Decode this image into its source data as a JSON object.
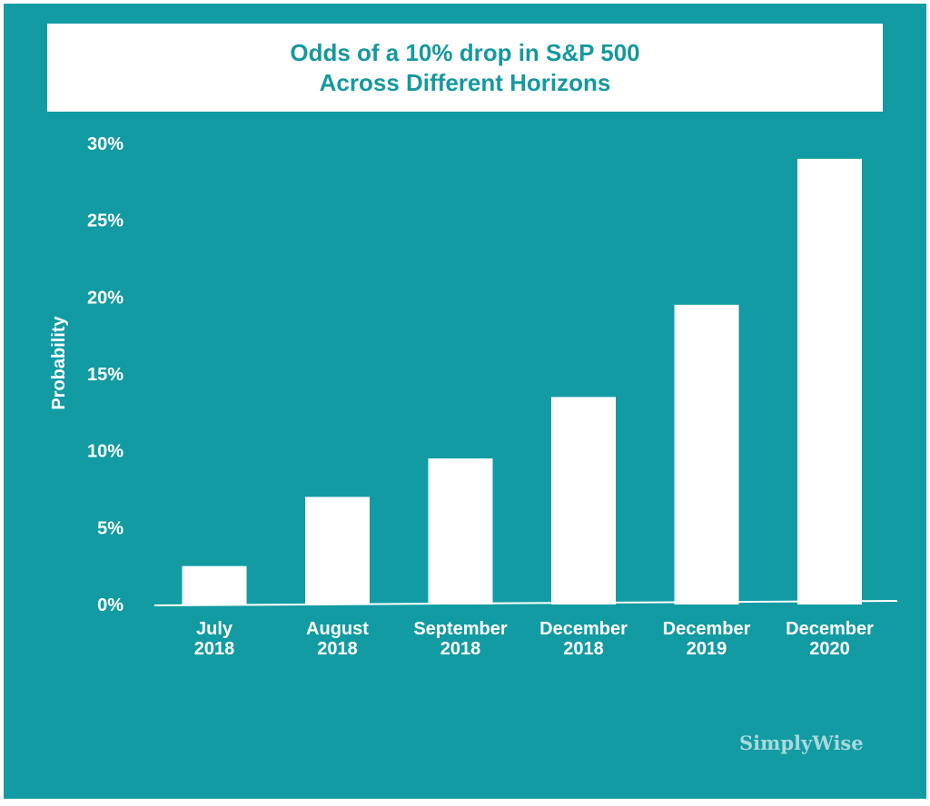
{
  "colors": {
    "background": "#139ba3",
    "title_box": "#ffffff",
    "title_text": "#16989f",
    "bars": "#ffffff",
    "axis_text": "#ffffff",
    "brand_text": "#a8d9dc"
  },
  "brand": "SimplyWise",
  "chart_data": {
    "type": "bar",
    "title": "Odds of a 10% drop in S&P 500",
    "subtitle": "Across Different Horizons",
    "ylabel": "Probability",
    "xlabel": "",
    "categories": [
      [
        "July",
        "2018"
      ],
      [
        "August",
        "2018"
      ],
      [
        "September",
        "2018"
      ],
      [
        "December",
        "2018"
      ],
      [
        "December",
        "2019"
      ],
      [
        "December",
        "2020"
      ]
    ],
    "values": [
      2.5,
      7.0,
      9.5,
      13.5,
      19.5,
      29.0
    ],
    "ylim": [
      0,
      30
    ],
    "yticks": [
      0,
      5,
      10,
      15,
      20,
      25,
      30
    ],
    "ytick_labels": [
      "0%",
      "5%",
      "10%",
      "15%",
      "20%",
      "25%",
      "30%"
    ],
    "grid": false,
    "legend": "none"
  }
}
